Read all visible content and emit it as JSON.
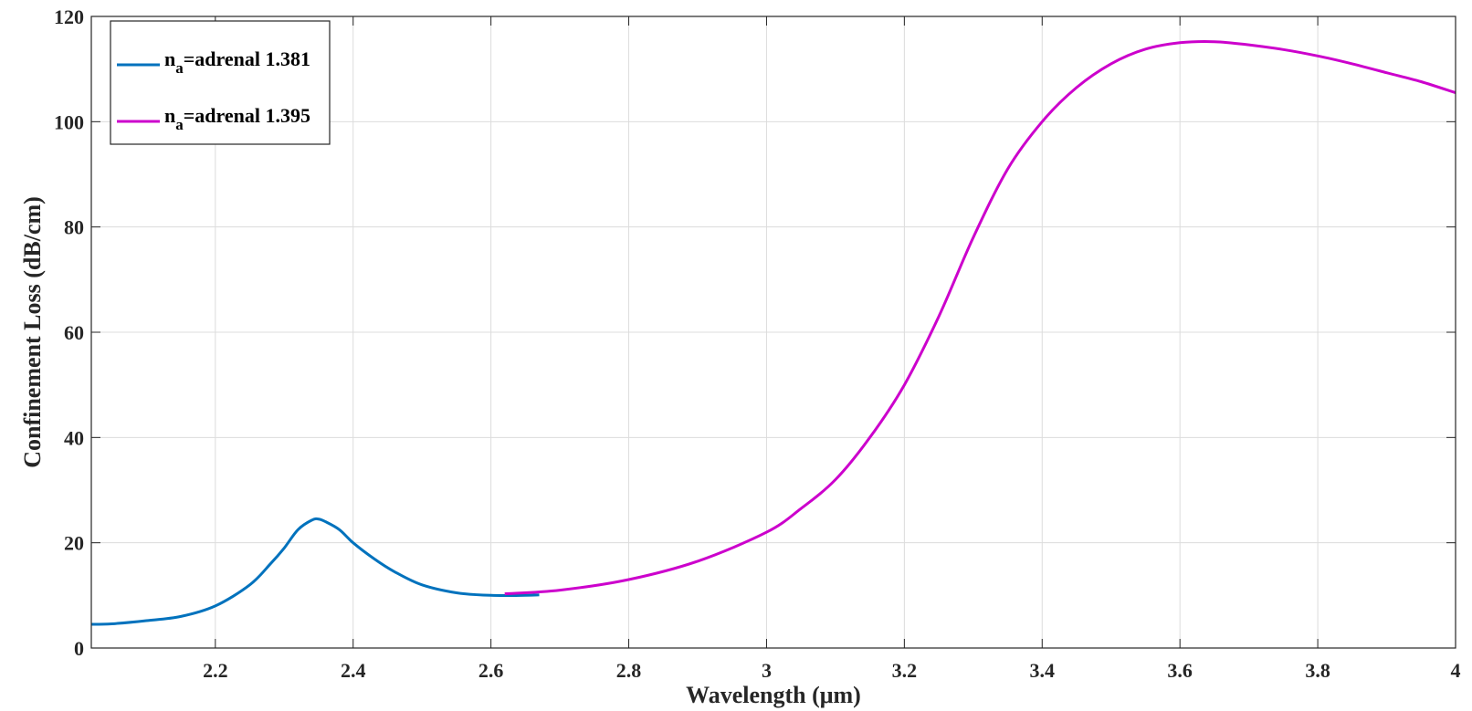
{
  "chart_data": {
    "type": "line",
    "xlabel": "Wavelength (μm)",
    "ylabel": "Confinement Loss (dB/cm)",
    "xlim": [
      2.02,
      4.0
    ],
    "ylim": [
      0,
      120
    ],
    "xticks": [
      2.2,
      2.4,
      2.6,
      2.8,
      3,
      3.2,
      3.4,
      3.6,
      3.8,
      4
    ],
    "yticks": [
      0,
      20,
      40,
      60,
      80,
      100,
      120
    ],
    "grid": true,
    "legend_position": "top-left",
    "series": [
      {
        "name": "n_a=adrenal 1.381",
        "legend_main": "n",
        "legend_sub": "a",
        "legend_rest": "=adrenal 1.381",
        "color": "#0072BD",
        "x": [
          2.02,
          2.05,
          2.1,
          2.15,
          2.2,
          2.25,
          2.28,
          2.3,
          2.32,
          2.34,
          2.35,
          2.36,
          2.38,
          2.4,
          2.43,
          2.46,
          2.5,
          2.55,
          2.6,
          2.65,
          2.67
        ],
        "y": [
          4.5,
          4.6,
          5.2,
          6.0,
          8.0,
          12.0,
          16.0,
          19.0,
          22.5,
          24.3,
          24.5,
          24.0,
          22.5,
          20.0,
          17.0,
          14.5,
          12.0,
          10.5,
          10.0,
          10.0,
          10.1
        ]
      },
      {
        "name": "n_a=adrenal 1.395",
        "legend_main": "n",
        "legend_sub": "a",
        "legend_rest": "=adrenal 1.395",
        "color": "#CC00CC",
        "x": [
          2.62,
          2.7,
          2.8,
          2.9,
          3.0,
          3.05,
          3.1,
          3.15,
          3.2,
          3.25,
          3.3,
          3.35,
          3.4,
          3.45,
          3.5,
          3.55,
          3.6,
          3.65,
          3.7,
          3.75,
          3.8,
          3.85,
          3.9,
          3.95,
          4.0
        ],
        "y": [
          10.3,
          11.0,
          13.0,
          16.5,
          22.0,
          26.5,
          32.0,
          40.0,
          50.0,
          63.0,
          78.0,
          91.0,
          100.0,
          106.5,
          111.0,
          113.8,
          115.0,
          115.2,
          114.6,
          113.7,
          112.5,
          111.0,
          109.3,
          107.6,
          105.5
        ]
      }
    ]
  }
}
